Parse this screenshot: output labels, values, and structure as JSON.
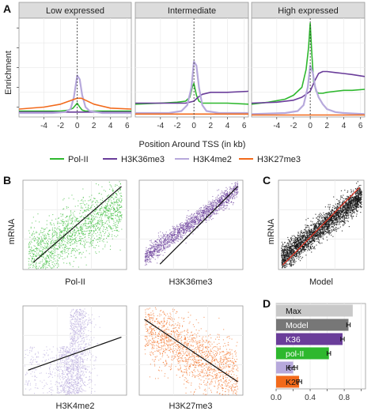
{
  "panel_letters": {
    "a": "A",
    "b": "B",
    "c": "C",
    "d": "D"
  },
  "colors": {
    "pol2": "#2eb82e",
    "k36": "#6a3d9a",
    "k4": "#b7a9dc",
    "k27": "#f26a1b",
    "grid": "#ececec",
    "strip": "#dcdcdc",
    "black": "#111111",
    "red": "#e0301e"
  },
  "chart_data": [
    {
      "type": "line",
      "panel": "A",
      "ylabel": "Enrichment",
      "xlabel": "Position Around TSS (in kb)",
      "xlim": [
        -7,
        6.5
      ],
      "xticks": [
        -4,
        -2,
        0,
        2,
        4,
        6
      ],
      "ylim": [
        0,
        1
      ],
      "legend": {
        "placement": "bottom",
        "entries": [
          {
            "label": "Pol-II",
            "color": "#2eb82e"
          },
          {
            "label": "H3K36me3",
            "color": "#6a3d9a"
          },
          {
            "label": "H3K4me2",
            "color": "#b7a9dc"
          },
          {
            "label": "H3K27me3",
            "color": "#f26a1b"
          }
        ]
      },
      "facets": [
        {
          "title": "Low expressed",
          "series": [
            {
              "key": "pol2",
              "x": [
                -7,
                -4,
                -2,
                -1,
                -0.5,
                0,
                0.3,
                0.6,
                1,
                2,
                4,
                6.5
              ],
              "y": [
                0.06,
                0.06,
                0.06,
                0.07,
                0.09,
                0.14,
                0.1,
                0.07,
                0.06,
                0.06,
                0.06,
                0.06
              ]
            },
            {
              "key": "k36",
              "x": [
                -7,
                -4,
                -2,
                0,
                2,
                4,
                6.5
              ],
              "y": [
                0.05,
                0.05,
                0.05,
                0.05,
                0.05,
                0.05,
                0.05
              ]
            },
            {
              "key": "k4",
              "x": [
                -7,
                -3,
                -1.5,
                -0.8,
                -0.4,
                0,
                0.3,
                0.6,
                1,
                1.5,
                3,
                6.5
              ],
              "y": [
                0.04,
                0.04,
                0.05,
                0.08,
                0.2,
                0.42,
                0.38,
                0.22,
                0.1,
                0.06,
                0.04,
                0.04
              ]
            },
            {
              "key": "k27",
              "x": [
                -7,
                -4,
                -2,
                -1,
                0,
                0.5,
                1,
                2,
                4,
                6.5
              ],
              "y": [
                0.08,
                0.1,
                0.13,
                0.16,
                0.19,
                0.19,
                0.17,
                0.13,
                0.09,
                0.08
              ]
            }
          ]
        },
        {
          "title": "Intermediate",
          "series": [
            {
              "key": "pol2",
              "x": [
                -7,
                -4,
                -2,
                -1,
                -0.5,
                -0.2,
                0,
                0.3,
                0.6,
                1,
                2,
                4,
                6.5
              ],
              "y": [
                0.13,
                0.14,
                0.15,
                0.16,
                0.2,
                0.3,
                0.34,
                0.22,
                0.16,
                0.14,
                0.14,
                0.14,
                0.13
              ]
            },
            {
              "key": "k36",
              "x": [
                -7,
                -4,
                -2,
                -1,
                0,
                0.5,
                1,
                2,
                3,
                4,
                6.5
              ],
              "y": [
                0.14,
                0.14,
                0.14,
                0.14,
                0.16,
                0.2,
                0.23,
                0.25,
                0.25,
                0.25,
                0.26
              ]
            },
            {
              "key": "k4",
              "x": [
                -7,
                -3,
                -1.5,
                -0.8,
                -0.3,
                0,
                0.3,
                0.6,
                1,
                1.5,
                3,
                6.5
              ],
              "y": [
                0.04,
                0.04,
                0.06,
                0.12,
                0.3,
                0.56,
                0.52,
                0.3,
                0.12,
                0.06,
                0.04,
                0.04
              ]
            },
            {
              "key": "k27",
              "x": [
                -7,
                -4,
                -2,
                0,
                2,
                4,
                6.5
              ],
              "y": [
                0.03,
                0.03,
                0.03,
                0.03,
                0.03,
                0.03,
                0.03
              ]
            }
          ]
        },
        {
          "title": "High expressed",
          "series": [
            {
              "key": "pol2",
              "x": [
                -7,
                -5,
                -3,
                -2,
                -1,
                -0.5,
                -0.2,
                0,
                0.2,
                0.4,
                0.7,
                1,
                1.5,
                2,
                3,
                4,
                5,
                6.5
              ],
              "y": [
                0.13,
                0.15,
                0.18,
                0.22,
                0.3,
                0.48,
                0.7,
                0.95,
                0.62,
                0.36,
                0.26,
                0.24,
                0.24,
                0.25,
                0.26,
                0.27,
                0.27,
                0.28
              ]
            },
            {
              "key": "k36",
              "x": [
                -7,
                -4,
                -2,
                -1,
                0,
                0.5,
                1,
                1.5,
                2,
                3,
                4,
                5,
                6.5
              ],
              "y": [
                0.14,
                0.15,
                0.17,
                0.2,
                0.26,
                0.36,
                0.44,
                0.46,
                0.46,
                0.45,
                0.44,
                0.43,
                0.41
              ]
            },
            {
              "key": "k4",
              "x": [
                -7,
                -3,
                -1.5,
                -0.8,
                -0.3,
                0,
                0.3,
                0.6,
                1,
                1.5,
                2,
                3,
                4,
                6.5
              ],
              "y": [
                0.03,
                0.04,
                0.06,
                0.12,
                0.3,
                0.52,
                0.45,
                0.3,
                0.2,
                0.13,
                0.08,
                0.05,
                0.04,
                0.03
              ]
            },
            {
              "key": "k27",
              "x": [
                -7,
                -4,
                -2,
                0,
                2,
                4,
                6.5
              ],
              "y": [
                0.02,
                0.02,
                0.02,
                0.02,
                0.02,
                0.02,
                0.02
              ]
            }
          ]
        }
      ]
    },
    {
      "type": "scatter",
      "panel": "B",
      "ylabel": "mRNA",
      "subplots": [
        {
          "xlabel": "Pol-II",
          "color": "#2eb82e",
          "fit": {
            "x": [
              0.1,
              0.95
            ],
            "y": [
              0.08,
              0.93
            ]
          },
          "trend": [
            0.1,
            0.75
          ],
          "spread": 0.16,
          "points": 1600
        },
        {
          "xlabel": "H3K36me3",
          "color": "#6a3d9a",
          "fit": {
            "x": [
              0.2,
              0.95
            ],
            "y": [
              0.06,
              0.93
            ]
          },
          "trend": [
            0.1,
            0.95
          ],
          "spread": 0.05,
          "points": 1600
        },
        {
          "xlabel": "H3K4me2",
          "color": "#b7a9dc",
          "fit": {
            "x": [
              0.05,
              0.95
            ],
            "y": [
              0.28,
              0.65
            ]
          },
          "trend": [
            0.2,
            0.6
          ],
          "spread": 0.28,
          "points": 1400
        },
        {
          "xlabel": "H3K27me3",
          "color": "#f26a1b",
          "fit": {
            "x": [
              0.05,
              0.95
            ],
            "y": [
              0.85,
              0.15
            ]
          },
          "trend": [
            0.8,
            0.15
          ],
          "spread": 0.18,
          "points": 1600
        }
      ]
    },
    {
      "type": "scatter",
      "panel": "C",
      "ylabel": "mRNA",
      "xlabel": "Model",
      "color": "#111111",
      "fit_color": "#e0301e",
      "fit": {
        "x": [
          0.05,
          0.95
        ],
        "y": [
          0.05,
          0.92
        ]
      },
      "trend": [
        0.1,
        0.85
      ],
      "spread": 0.07,
      "points": 2600
    },
    {
      "type": "bar",
      "panel": "D",
      "orientation": "horizontal",
      "categories": [
        "Max",
        "Model",
        "K36",
        "pol-II",
        "K4",
        "K27"
      ],
      "values": [
        0.9,
        0.85,
        0.78,
        0.62,
        0.2,
        0.27
      ],
      "errors": [
        0.0,
        0.02,
        0.02,
        0.02,
        0.05,
        0.03
      ],
      "colors": [
        "#c9c9c9",
        "#777777",
        "#6a3d9a",
        "#2eb82e",
        "#b7a9dc",
        "#f26a1b"
      ],
      "label_colors": [
        "#111111",
        "#ffffff",
        "#ffffff",
        "#ffffff",
        "#111111",
        "#111111"
      ],
      "xlim": [
        0,
        1.05
      ],
      "xticks": [
        "0.0",
        "0.2",
        "0.4",
        "0.6",
        "0.8",
        "1.0"
      ]
    }
  ]
}
